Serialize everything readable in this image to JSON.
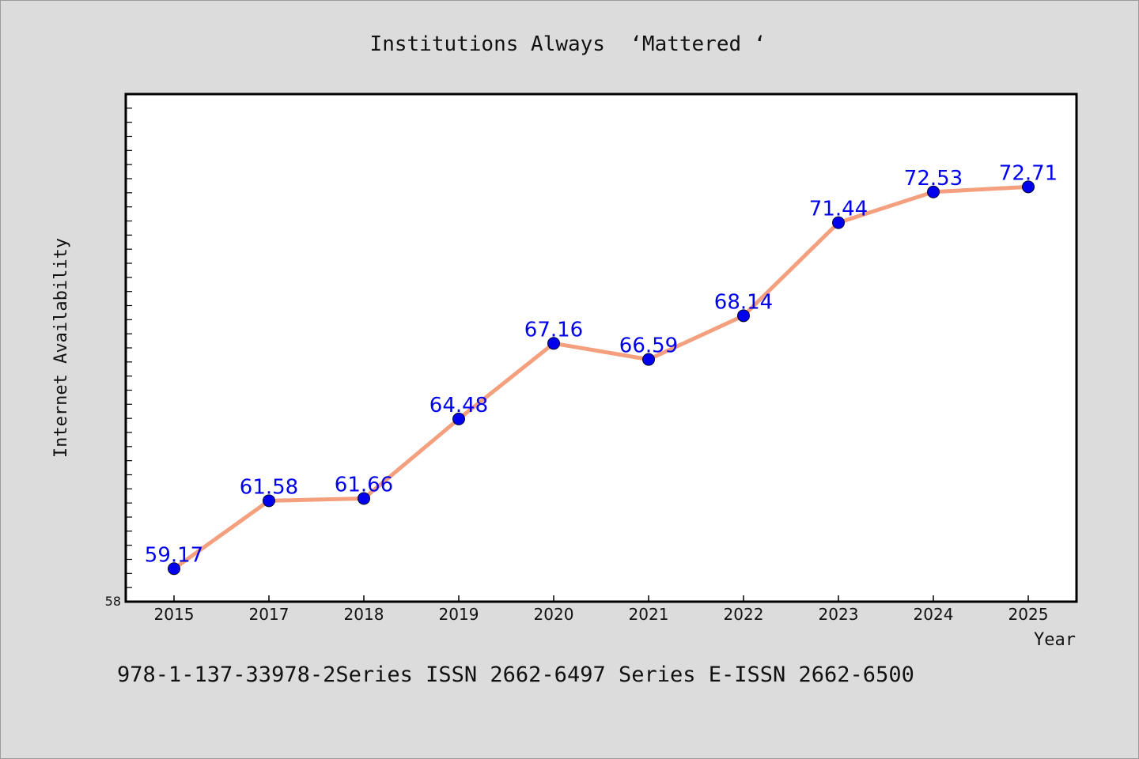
{
  "chart_data": {
    "type": "line",
    "title": "Institutions Always  ‘Mattered ‘",
    "xlabel": "Year",
    "ylabel": "Internet Availability",
    "categories": [
      "2015",
      "2017",
      "2018",
      "2019",
      "2020",
      "2021",
      "2022",
      "2023",
      "2024",
      "2025"
    ],
    "series": [
      {
        "values": [
          59.17,
          61.58,
          61.66,
          64.48,
          67.16,
          66.59,
          68.14,
          71.44,
          72.53,
          72.71
        ],
        "labels": [
          "59.17",
          "61.58",
          "61.66",
          "64.48",
          "67.16",
          "66.59",
          "68.14",
          "71.44",
          "72.53",
          "72.71"
        ]
      }
    ],
    "y_tick_labels": [
      "58"
    ],
    "ylim": [
      58,
      76
    ],
    "grid": false,
    "legend": "none",
    "colors": {
      "line": "#f4a07e",
      "marker": "#0000ee",
      "label": "#0000ee",
      "plot_background": "#ffffff",
      "page_background": "#dcdcdc"
    }
  },
  "footer": {
    "text": "978-1-137-33978-2Series ISSN 2662-6497 Series E-ISSN 2662-6500"
  }
}
